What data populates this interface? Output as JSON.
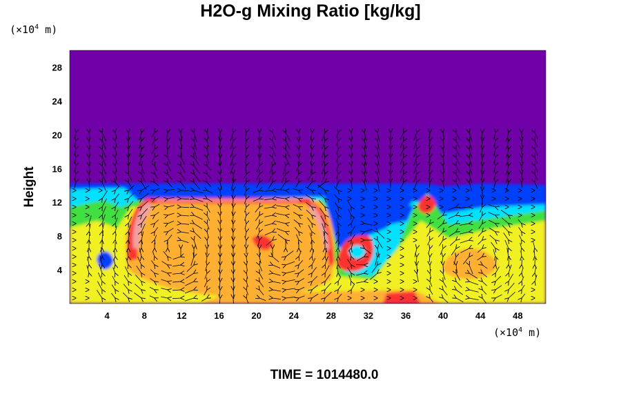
{
  "title": "H2O-g Mixing Ratio [kg/kg]",
  "time_label": "TIME = 1014480.0",
  "y_unit": {
    "prefix": "(×10",
    "exp": "4",
    "suffix": " m)"
  },
  "x_unit": {
    "prefix": "(×10",
    "exp": "4",
    "suffix": " m)"
  },
  "colors": {
    "background": "#7000a8",
    "blue": "#0040ff",
    "cyan": "#00e0ff",
    "green": "#40e040",
    "yellow": "#f0f020",
    "orange": "#ffb030",
    "red": "#ff3030",
    "pink": "#f0a0a0"
  },
  "chart_data": {
    "type": "heatmap",
    "title": "H2O-g Mixing Ratio [kg/kg]",
    "ylabel": "Height",
    "xlabel": "",
    "x_ticks": [
      4,
      8,
      12,
      16,
      20,
      24,
      28,
      32,
      36,
      40,
      44,
      48
    ],
    "y_ticks": [
      4,
      8,
      12,
      16,
      20,
      24,
      28
    ],
    "xlim": [
      0,
      51
    ],
    "ylim": [
      0,
      30
    ],
    "x_unit": "×10^4 m",
    "y_unit": "×10^4 m",
    "overlay": "wind vector arrows",
    "time": "1014480.0"
  }
}
